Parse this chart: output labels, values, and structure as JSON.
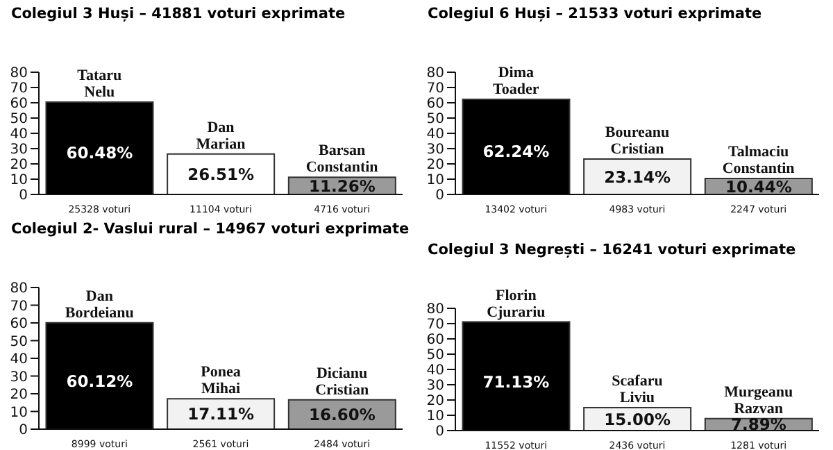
{
  "chart_data": [
    {
      "type": "bar",
      "title": "Colegiul 3 Huși – 41881 voturi exprimate",
      "categories": [
        "25328 voturi",
        "11104 voturi",
        "4716 voturi"
      ],
      "values": [
        60.48,
        26.51,
        11.26
      ],
      "colors": [
        "#000000",
        "#ffffff",
        "#9a9a9a"
      ],
      "value_labels": [
        "60.48%",
        "26.51%",
        "11.26%"
      ],
      "ylim": [
        0,
        80
      ],
      "yticks": [
        0,
        10,
        20,
        30,
        40,
        50,
        60,
        70,
        80
      ],
      "grid": false,
      "legend": false,
      "annotations": [
        {
          "text": "Tataru Nelu",
          "x": "25328 voturi",
          "y": 60.48
        },
        {
          "text": "Dan Marian",
          "x": "11104 voturi",
          "y": 26.51
        },
        {
          "text": "Barsan Constantin",
          "x": "4716 voturi",
          "y": 11.26
        }
      ]
    },
    {
      "type": "bar",
      "title": "Colegiul 6 Huși – 21533 voturi exprimate",
      "categories": [
        "13402 voturi",
        "4983 voturi",
        "2247 voturi"
      ],
      "values": [
        62.24,
        23.14,
        10.44
      ],
      "colors": [
        "#000000",
        "#f2f2f2",
        "#9a9a9a"
      ],
      "value_labels": [
        "62.24%",
        "23.14%",
        "10.44%"
      ],
      "ylim": [
        0,
        80
      ],
      "yticks": [
        0,
        10,
        20,
        30,
        40,
        50,
        60,
        70,
        80
      ],
      "grid": false,
      "legend": false,
      "annotations": [
        {
          "text": "Dima Toader",
          "x": "13402 voturi",
          "y": 62.24
        },
        {
          "text": "Boureanu Cristian",
          "x": "4983 voturi",
          "y": 23.14
        },
        {
          "text": "Talmaciu Constantin",
          "x": "2247 voturi",
          "y": 10.44
        }
      ]
    },
    {
      "type": "bar",
      "title": "Colegiul 2- Vaslui rural – 14967 voturi exprimate",
      "categories": [
        "8999 voturi",
        "2561 voturi",
        "2484 voturi"
      ],
      "values": [
        60.12,
        17.11,
        16.6
      ],
      "colors": [
        "#000000",
        "#f2f2f2",
        "#9a9a9a"
      ],
      "value_labels": [
        "60.12%",
        "17.11%",
        "16.60%"
      ],
      "ylim": [
        0,
        80
      ],
      "yticks": [
        0,
        10,
        20,
        30,
        40,
        50,
        60,
        70,
        80
      ],
      "grid": false,
      "legend": false,
      "annotations": [
        {
          "text": "Dan Bordeianu",
          "x": "8999 voturi",
          "y": 60.12
        },
        {
          "text": "Ponea Mihai",
          "x": "2561 voturi",
          "y": 17.11
        },
        {
          "text": "Dicianu Cristian",
          "x": "2484 voturi",
          "y": 16.6
        }
      ]
    },
    {
      "type": "bar",
      "title": "Colegiul 3 Negrești – 16241 voturi exprimate",
      "categories": [
        "11552 voturi",
        "2436 voturi",
        "1281 voturi"
      ],
      "values": [
        71.13,
        15.0,
        7.89
      ],
      "colors": [
        "#000000",
        "#f2f2f2",
        "#9a9a9a"
      ],
      "value_labels": [
        "71.13%",
        "15.00%",
        "7.89%"
      ],
      "ylim": [
        0,
        80
      ],
      "yticks": [
        0,
        10,
        20,
        30,
        40,
        50,
        60,
        70,
        80
      ],
      "grid": false,
      "legend": false,
      "annotations": [
        {
          "text": "Florin Cjurariu",
          "x": "11552 voturi",
          "y": 71.13
        },
        {
          "text": "Scafaru Liviu",
          "x": "2436 voturi",
          "y": 15.0
        },
        {
          "text": "Murgeanu Razvan",
          "x": "1281 voturi",
          "y": 7.89
        }
      ]
    }
  ]
}
